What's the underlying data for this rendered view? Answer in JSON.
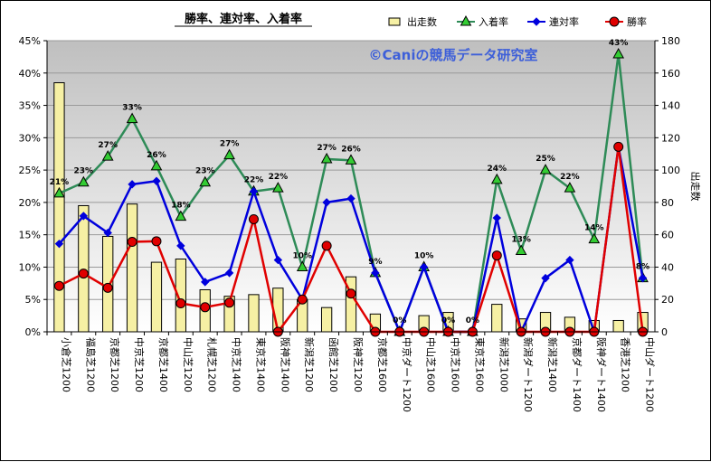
{
  "chart_data": {
    "type": "bar",
    "title": "勝率、連対率、入着率",
    "watermark": "©Caniの競馬データ研究室",
    "categories": [
      "小倉芝1200",
      "福島芝1200",
      "京都芝1200",
      "中京芝1200",
      "京都芝1400",
      "中山芝1200",
      "札幌芝1200",
      "中京芝1400",
      "東京芝1400",
      "阪神芝1400",
      "新潟芝1200",
      "函館芝1200",
      "阪神芝1200",
      "京都芝1600",
      "中京ダート1200",
      "中山芝1600",
      "中京芝1600",
      "東京芝1600",
      "新潟芝1000",
      "新潟ダート1200",
      "新潟芝1400",
      "京都ダート1400",
      "阪神ダート1400",
      "香港芝1200",
      "中山ダート1200"
    ],
    "left_axis": {
      "min": 0,
      "max": 45,
      "step": 5,
      "format": "percent"
    },
    "right_axis": {
      "min": 0,
      "max": 180,
      "step": 20,
      "label": "出走数"
    },
    "legend": [
      "出走数",
      "入着率",
      "連対率",
      "勝率"
    ],
    "legend_position": "top-right",
    "colors": {
      "bar_fill": "#f6f0a4",
      "bar_stroke": "#000000",
      "entry_line": "#2e8b57",
      "entry_marker": "#33cc33",
      "rentai_line": "#0000dd",
      "win_line": "#e00000",
      "plot_bg_top": "#bfbfbf",
      "plot_bg_bottom": "#ffffff",
      "watermark": "#3d5fd9"
    },
    "series": [
      {
        "name": "出走数",
        "axis": "right",
        "kind": "bar",
        "values": [
          154,
          78,
          59,
          79,
          43,
          45,
          26,
          22,
          23,
          27,
          20,
          15,
          34,
          11,
          0,
          10,
          12,
          0,
          17,
          8,
          12,
          9,
          7,
          7,
          12
        ]
      },
      {
        "name": "入着率",
        "axis": "left",
        "kind": "line",
        "marker": "triangle",
        "values": [
          21.4,
          23.1,
          27.1,
          32.9,
          25.6,
          17.8,
          23.1,
          27.3,
          21.7,
          22.2,
          10.0,
          26.7,
          26.5,
          9.1,
          0,
          10.0,
          0,
          0,
          23.5,
          12.5,
          25.0,
          22.2,
          14.3,
          42.9,
          8.3
        ]
      },
      {
        "name": "連対率",
        "axis": "left",
        "kind": "line",
        "marker": "diamond",
        "values": [
          13.6,
          17.9,
          15.3,
          22.8,
          23.3,
          13.3,
          7.7,
          9.1,
          21.7,
          11.1,
          5.0,
          20.0,
          20.6,
          9.1,
          0,
          10.0,
          0,
          0,
          17.6,
          0,
          8.3,
          11.1,
          0,
          28.6,
          8.3
        ]
      },
      {
        "name": "勝率",
        "axis": "left",
        "kind": "line",
        "marker": "circle",
        "values": [
          7.1,
          9.0,
          6.8,
          13.9,
          14.0,
          4.4,
          3.8,
          4.5,
          17.4,
          0,
          5.0,
          13.3,
          5.9,
          0,
          0,
          0,
          0,
          0,
          11.8,
          0,
          0,
          0,
          0,
          28.6,
          0
        ]
      }
    ],
    "data_labels": {
      "series": "入着率",
      "values": [
        "21%",
        "23%",
        "27%",
        "33%",
        "26%",
        "18%",
        "23%",
        "27%",
        "22%",
        "22%",
        "10%",
        "27%",
        "26%",
        "9%",
        "0%",
        "10%",
        "0%",
        "0%",
        "24%",
        "13%",
        "25%",
        "22%",
        "14%",
        "43%",
        "8%"
      ]
    }
  }
}
